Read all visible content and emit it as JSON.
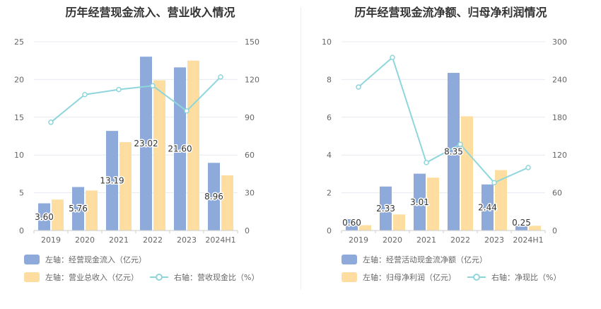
{
  "colors": {
    "bar_a": "#8eaadb",
    "bar_b": "#fddea0",
    "line": "#8fd6dc",
    "grid": "#e6e9f0",
    "axis_text": "#666666",
    "label_text": "#333333"
  },
  "chart_data": [
    {
      "type": "bar",
      "title": "历年经营现金流入、营业收入情况",
      "categories": [
        "2019",
        "2020",
        "2021",
        "2022",
        "2023",
        "2024H1"
      ],
      "y_left": {
        "range": [
          0,
          25
        ],
        "ticks": [
          "0",
          "5",
          "10",
          "15",
          "20",
          "25"
        ]
      },
      "y_right": {
        "range": [
          0,
          150
        ],
        "ticks": [
          "0",
          "30",
          "60",
          "90",
          "120",
          "150"
        ]
      },
      "series": [
        {
          "name": "左轴：经营现金流入（亿元）",
          "axis": "left",
          "kind": "bar",
          "values": [
            3.6,
            5.76,
            13.19,
            23.02,
            21.6,
            8.96
          ],
          "labels": [
            "3.60",
            "5.76",
            "13.19",
            "23.02",
            "21.60",
            "8.96"
          ]
        },
        {
          "name": "左轴：营业总收入（亿元）",
          "axis": "left",
          "kind": "bar",
          "values": [
            4.1,
            5.3,
            11.7,
            19.9,
            22.5,
            7.3
          ]
        },
        {
          "name": "右轴：营收现金比（%）",
          "axis": "right",
          "kind": "line",
          "values": [
            86,
            108,
            112,
            115,
            95,
            122
          ]
        }
      ],
      "legend": [
        "左轴：经营现金流入（亿元）",
        "左轴：营业总收入（亿元）",
        "右轴：营收现金比（%）"
      ]
    },
    {
      "type": "bar",
      "title": "历年经营现金流净额、归母净利润情况",
      "categories": [
        "2019",
        "2020",
        "2021",
        "2022",
        "2023",
        "2024H1"
      ],
      "y_left": {
        "range": [
          0,
          10
        ],
        "ticks": [
          "0",
          "2",
          "4",
          "6",
          "8",
          "10"
        ]
      },
      "y_right": {
        "range": [
          0,
          300
        ],
        "ticks": [
          "0",
          "60",
          "120",
          "180",
          "240",
          "300"
        ]
      },
      "series": [
        {
          "name": "左轴：经营活动现金流净额（亿元）",
          "axis": "left",
          "kind": "bar",
          "values": [
            0.6,
            2.33,
            3.01,
            8.35,
            2.44,
            0.25
          ],
          "labels": [
            "0.60",
            "2.33",
            "3.01",
            "8.35",
            "2.44",
            "0.25"
          ]
        },
        {
          "name": "左轴：归母净利润（亿元）",
          "axis": "left",
          "kind": "bar",
          "values": [
            0.28,
            0.85,
            2.8,
            6.05,
            3.2,
            0.25
          ]
        },
        {
          "name": "右轴：净现比（%）",
          "axis": "right",
          "kind": "line",
          "values": [
            228,
            275,
            108,
            137,
            76,
            100
          ]
        }
      ],
      "legend": [
        "左轴：经营活动现金流净额（亿元）",
        "左轴：归母净利润（亿元）",
        "右轴：净现比（%）"
      ]
    }
  ]
}
